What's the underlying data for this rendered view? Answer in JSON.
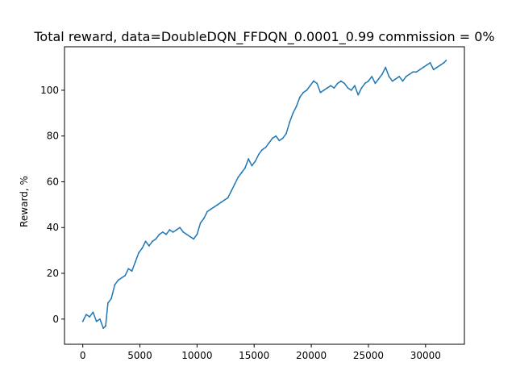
{
  "chart_data": {
    "type": "line",
    "title": "Total reward, data=DoubleDQN_FFDQN_0.0001_0.99 commission = 0%",
    "xlabel": "",
    "ylabel": "Reward, %",
    "xlim": [
      -1600,
      33400
    ],
    "ylim": [
      -11,
      119
    ],
    "xticks": [
      0,
      5000,
      10000,
      15000,
      20000,
      25000,
      30000
    ],
    "xtick_labels": [
      "0",
      "5000",
      "10000",
      "15000",
      "20000",
      "25000",
      "30000"
    ],
    "yticks": [
      0,
      20,
      40,
      60,
      80,
      100
    ],
    "ytick_labels": [
      "0",
      "20",
      "40",
      "60",
      "80",
      "100"
    ],
    "grid": false,
    "legend": "none",
    "color": "#1f77b4",
    "series": [
      {
        "x": [
          0,
          300,
          600,
          900,
          1200,
          1500,
          1800,
          2000,
          2200,
          2500,
          2800,
          3100,
          3400,
          3700,
          4000,
          4300,
          4600,
          4900,
          5200,
          5500,
          5800,
          6100,
          6400,
          6700,
          7000,
          7300,
          7600,
          7900,
          8200,
          8500,
          8800,
          9100,
          9400,
          9700,
          10000,
          10300,
          10600,
          10900,
          11200,
          11500,
          11800,
          12100,
          12400,
          12700,
          13000,
          13300,
          13600,
          13900,
          14200,
          14500,
          14800,
          15100,
          15400,
          15700,
          16000,
          16300,
          16600,
          16900,
          17200,
          17500,
          17800,
          18100,
          18400,
          18700,
          19000,
          19300,
          19600,
          19900,
          20200,
          20500,
          20800,
          21100,
          21400,
          21700,
          22000,
          22300,
          22600,
          22900,
          23200,
          23500,
          23800,
          24100,
          24400,
          24700,
          25000,
          25300,
          25600,
          25900,
          26200,
          26500,
          26800,
          27100,
          27400,
          27700,
          28000,
          28300,
          28600,
          28900,
          29200,
          29500,
          29800,
          30100,
          30400,
          30700,
          31000,
          31300,
          31600,
          31800
        ],
        "y": [
          -1,
          2,
          1,
          3,
          -1,
          0,
          -4,
          -3,
          7,
          9,
          15,
          17,
          18,
          19,
          22,
          21,
          25,
          29,
          31,
          34,
          32,
          34,
          35,
          37,
          38,
          37,
          39,
          38,
          39,
          40,
          38,
          37,
          36,
          35,
          37,
          42,
          44,
          47,
          48,
          49,
          50,
          51,
          52,
          53,
          56,
          59,
          62,
          64,
          66,
          70,
          67,
          69,
          72,
          74,
          75,
          77,
          79,
          80,
          78,
          79,
          81,
          86,
          90,
          93,
          97,
          99,
          100,
          102,
          104,
          103,
          99,
          100,
          101,
          102,
          101,
          103,
          104,
          103,
          101,
          100,
          102,
          98,
          101,
          103,
          104,
          106,
          103,
          105,
          107,
          110,
          106,
          104,
          105,
          106,
          104,
          106,
          107,
          108,
          108,
          109,
          110,
          111,
          112,
          109,
          110,
          111,
          112,
          113
        ]
      }
    ]
  }
}
